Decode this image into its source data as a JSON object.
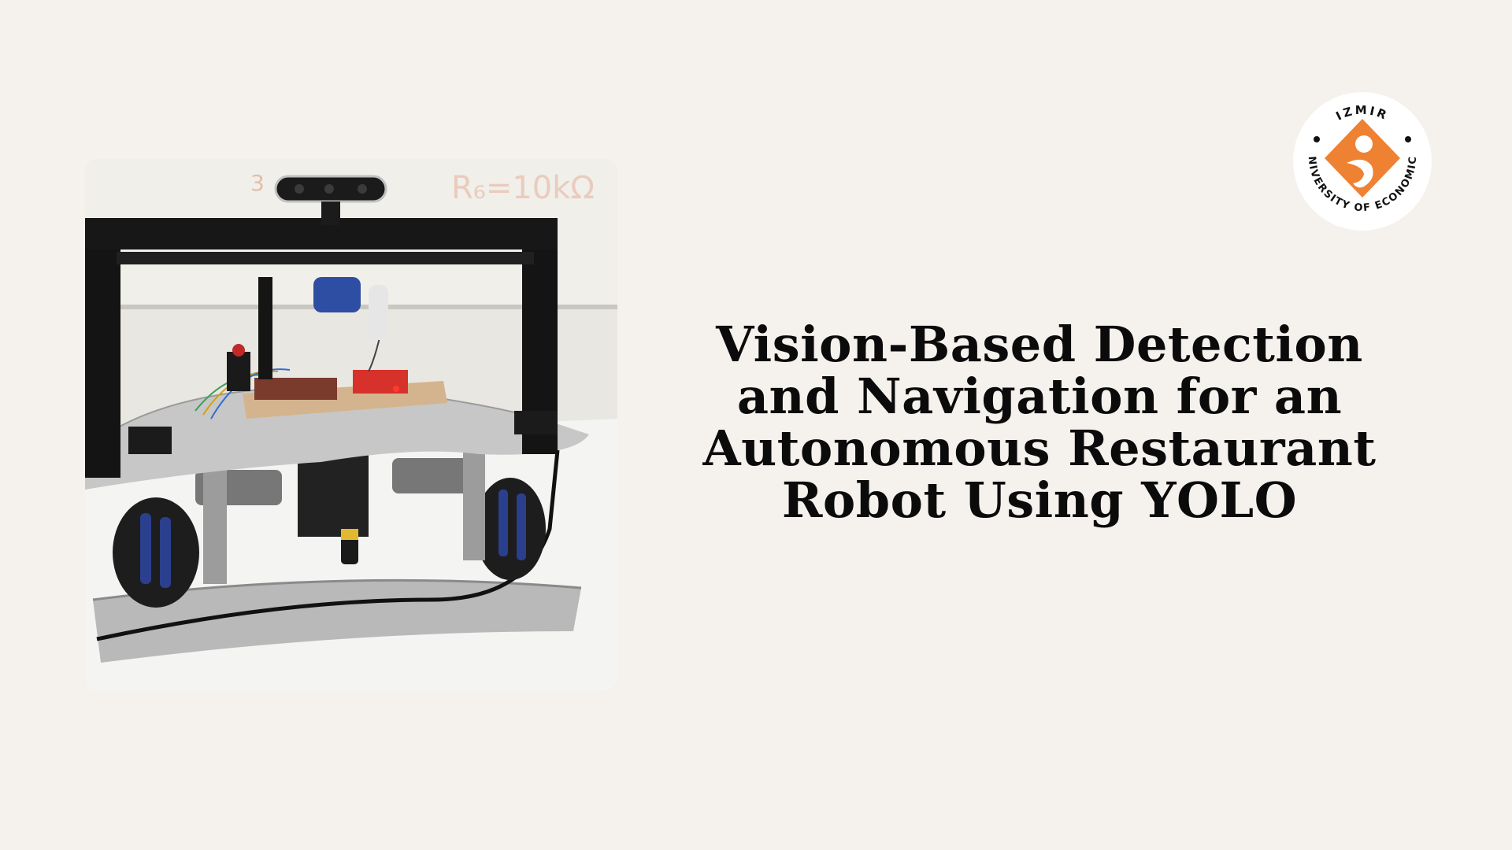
{
  "slide": {
    "title_lines": [
      "Vision-Based Detection",
      "and Navigation for an",
      "Autonomous Restaurant",
      "Robot Using YOLO"
    ]
  },
  "photo": {
    "subject": "robot-photo"
  },
  "logo": {
    "top_text": "IZMIR",
    "ring_text": "UNIVERSITY OF ECONOMICS",
    "accent": "#ef8133"
  },
  "colors": {
    "background": "#f5f1ed",
    "text": "#0b0b0b"
  }
}
